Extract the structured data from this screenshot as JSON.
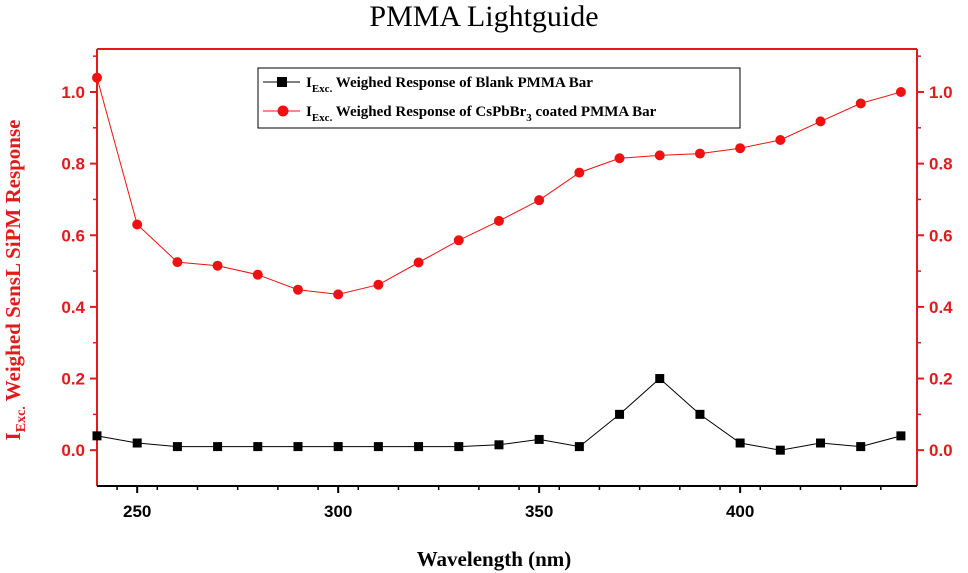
{
  "chart_data": {
    "type": "line",
    "title": "PMMA Lightguide",
    "xlabel": "Wavelength (nm)",
    "ylabel": {
      "main": "I",
      "sub": "Exc.",
      "rest": " Weighed SensL SiPM Response"
    },
    "xlim": [
      240,
      444
    ],
    "ylim": [
      -0.1,
      1.12
    ],
    "x_ticks": [
      250,
      300,
      350,
      400
    ],
    "y_ticks": [
      0.0,
      0.2,
      0.4,
      0.6,
      0.8,
      1.0
    ],
    "y_tick_labels": [
      "0.0",
      "0.2",
      "0.4",
      "0.6",
      "0.8",
      "1.0"
    ],
    "legend_position": "top-center",
    "x": [
      240,
      250,
      260,
      270,
      280,
      290,
      300,
      310,
      320,
      330,
      340,
      350,
      360,
      370,
      380,
      390,
      400,
      410,
      420,
      430,
      440
    ],
    "series": [
      {
        "name": "IExc. Weighed Response of Blank PMMA Bar",
        "legend": {
          "pre": "I",
          "sub": "Exc.",
          "mid": " Weighed Response of Blank PMMA Bar",
          "sub2": "",
          "post": ""
        },
        "color": "#000000",
        "marker": "square",
        "values": [
          0.04,
          0.02,
          0.01,
          0.01,
          0.01,
          0.01,
          0.01,
          0.01,
          0.01,
          0.01,
          0.015,
          0.03,
          0.01,
          0.1,
          0.2,
          0.1,
          0.02,
          0.0,
          0.02,
          0.01,
          0.04
        ]
      },
      {
        "name": "IExc. Weighed Response of CsPbBr3 coated PMMA Bar",
        "legend": {
          "pre": "I",
          "sub": "Exc.",
          "mid": " Weighed Response of CsPbBr",
          "sub2": "3",
          "post": " coated PMMA Bar"
        },
        "color": "#ee1111",
        "marker": "circle",
        "values": [
          1.04,
          0.63,
          0.525,
          0.515,
          0.49,
          0.448,
          0.435,
          0.462,
          0.524,
          0.586,
          0.64,
          0.698,
          0.775,
          0.815,
          0.823,
          0.828,
          0.843,
          0.866,
          0.918,
          0.968,
          1.0
        ]
      }
    ],
    "axis_colors": {
      "x": "#000000",
      "left": "#e31a1c",
      "right": "#e31a1c",
      "top": "#e31a1c"
    }
  }
}
